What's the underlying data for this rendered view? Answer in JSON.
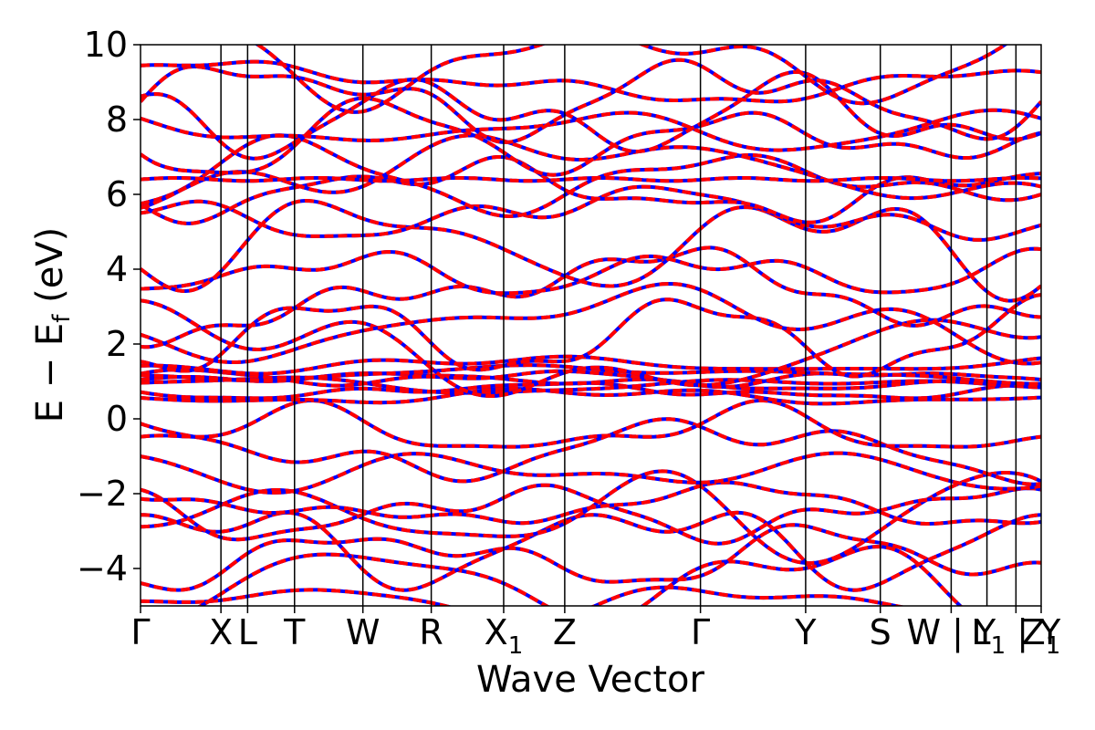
{
  "chart_data": {
    "type": "line",
    "xlabel": "Wave Vector",
    "ylabel": "E − E_f (eV)",
    "ylabel_parts": {
      "main": "E − E",
      "sub": "f",
      "unit": " (eV)"
    },
    "ylim": [
      -5,
      10
    ],
    "yticks": [
      {
        "value": -4,
        "label": "−4"
      },
      {
        "value": -2,
        "label": "−2"
      },
      {
        "value": 0,
        "label": "0"
      },
      {
        "value": 2,
        "label": "2"
      },
      {
        "value": 4,
        "label": "4"
      },
      {
        "value": 6,
        "label": "6"
      },
      {
        "value": 8,
        "label": "8"
      },
      {
        "value": 10,
        "label": "10"
      }
    ],
    "kpath_positions": [
      0,
      0.0893,
      0.1189,
      0.171,
      0.2469,
      0.3228,
      0.4032,
      0.471,
      0.6217,
      0.7385,
      0.8214,
      0.9001,
      0.9398,
      0.972,
      1.0
    ],
    "kpath_labels": [
      {
        "pos": 0,
        "label": "Γ"
      },
      {
        "pos": 0.0893,
        "label": "X"
      },
      {
        "pos": 0.1189,
        "label": "L"
      },
      {
        "pos": 0.171,
        "label": "T"
      },
      {
        "pos": 0.2469,
        "label": "W"
      },
      {
        "pos": 0.3228,
        "label": "R"
      },
      {
        "pos": 0.4032,
        "label": "X",
        "sub": "1"
      },
      {
        "pos": 0.471,
        "label": "Z"
      },
      {
        "pos": 0.6217,
        "label": "Γ"
      },
      {
        "pos": 0.7385,
        "label": "Y"
      },
      {
        "pos": 0.8214,
        "label": "S"
      },
      {
        "pos": 0.9001,
        "label": "W | Y"
      },
      {
        "pos": 0.972,
        "label": "L",
        "sub": "1",
        "suffix": " | Y"
      },
      {
        "pos": 1.0,
        "label": "Z",
        "sub": "1"
      }
    ],
    "series_styles": [
      {
        "color": "#0000ff",
        "dash": "solid"
      },
      {
        "color": "#ff0000",
        "dash": "dashed"
      }
    ],
    "flat_bands": [
      6.4
    ],
    "band_energies_at_gamma": [
      -4.9,
      -4.35,
      -3.7,
      -3.3,
      -2.6,
      -2.5,
      -2.35,
      -1.4,
      -0.8,
      -0.35,
      0.6,
      0.75,
      0.9,
      1.0,
      1.1,
      1.2,
      1.45,
      1.8,
      2.2,
      2.5,
      3.3,
      3.9,
      4.7,
      5.5,
      6.1,
      6.4,
      6.6,
      7.5,
      7.7,
      8.1,
      8.6,
      9.0,
      9.6
    ]
  }
}
